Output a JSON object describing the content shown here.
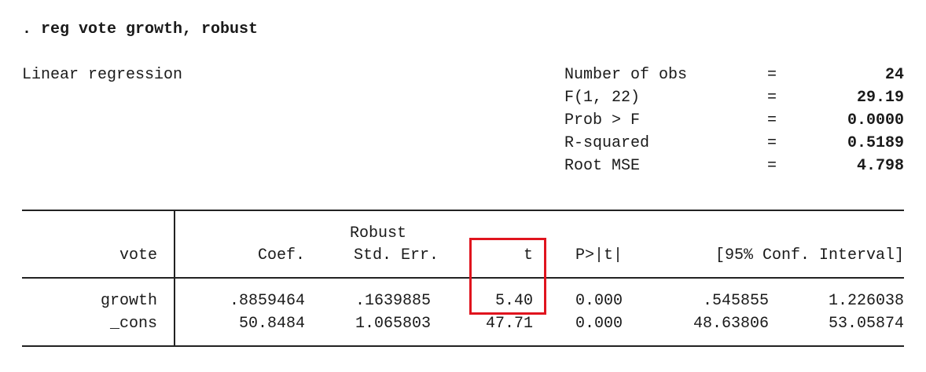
{
  "command": ". reg vote growth, robust",
  "model_title": "Linear regression",
  "stats": [
    {
      "label": "Number of obs",
      "eq": "=",
      "value": "24"
    },
    {
      "label": "F(1, 22)",
      "eq": "=",
      "value": "29.19"
    },
    {
      "label": "Prob > F",
      "eq": "=",
      "value": "0.0000"
    },
    {
      "label": "R-squared",
      "eq": "=",
      "value": "0.5189"
    },
    {
      "label": "Root MSE",
      "eq": "=",
      "value": "4.798"
    }
  ],
  "table": {
    "header_top": {
      "robust": "Robust"
    },
    "headers": {
      "depvar": "vote",
      "coef": "Coef.",
      "stderr": "Std. Err.",
      "t": "t",
      "p": "P>|t|",
      "ci": "[95% Conf. Interval]"
    },
    "rows": [
      {
        "name": "growth",
        "coef": ".8859464",
        "stderr": ".1639885",
        "t": "5.40",
        "p": "0.000",
        "ci_low": ".545855",
        "ci_high": "1.226038"
      },
      {
        "name": "_cons",
        "coef": "50.8484",
        "stderr": "1.065803",
        "t": "47.71",
        "p": "0.000",
        "ci_low": "48.63806",
        "ci_high": "53.05874"
      }
    ]
  },
  "highlight_color": "#e0141e"
}
